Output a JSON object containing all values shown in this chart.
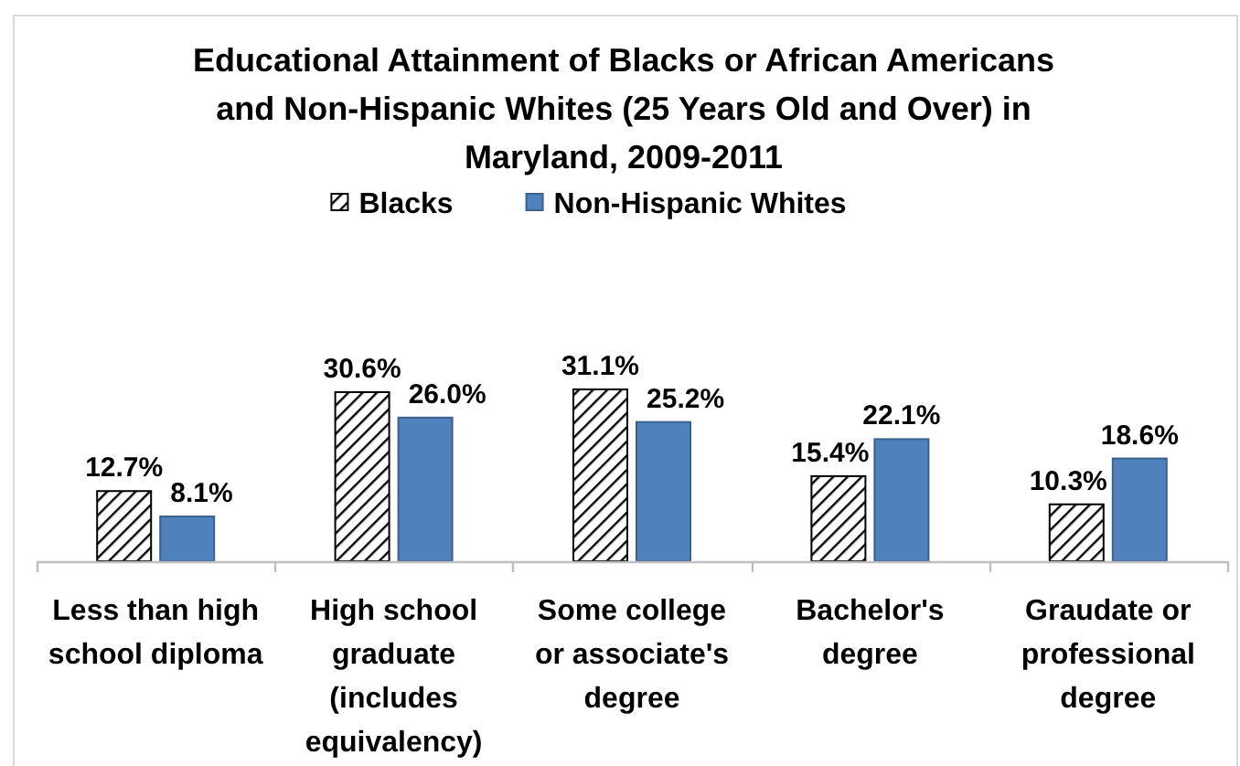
{
  "chart_data": {
    "type": "bar",
    "title": "Educational Attainment of Blacks or African Americans and Non-Hispanic Whites (25 Years Old and Over) in Maryland, 2009-2011",
    "categories": [
      "Less than high school diploma",
      "High school graduate (includes equivalency)",
      "Some college or associate's degree",
      "Bachelor's degree",
      "Graudate or professional degree"
    ],
    "series": [
      {
        "name": "Blacks",
        "color": "#000000",
        "values": [
          12.7,
          30.6,
          31.1,
          15.4,
          10.3
        ],
        "value_labels": [
          "12.7%",
          "30.6%",
          "31.1%",
          "15.4%",
          "10.3%"
        ]
      },
      {
        "name": "Non-Hispanic Whites",
        "color": "#4f81bd",
        "values": [
          8.1,
          26.0,
          25.2,
          22.1,
          18.6
        ],
        "value_labels": [
          "8.1%",
          "26.0%",
          "25.2%",
          "22.1%",
          "18.6%"
        ]
      }
    ],
    "tick_labels": "x",
    "legend": "top"
  }
}
